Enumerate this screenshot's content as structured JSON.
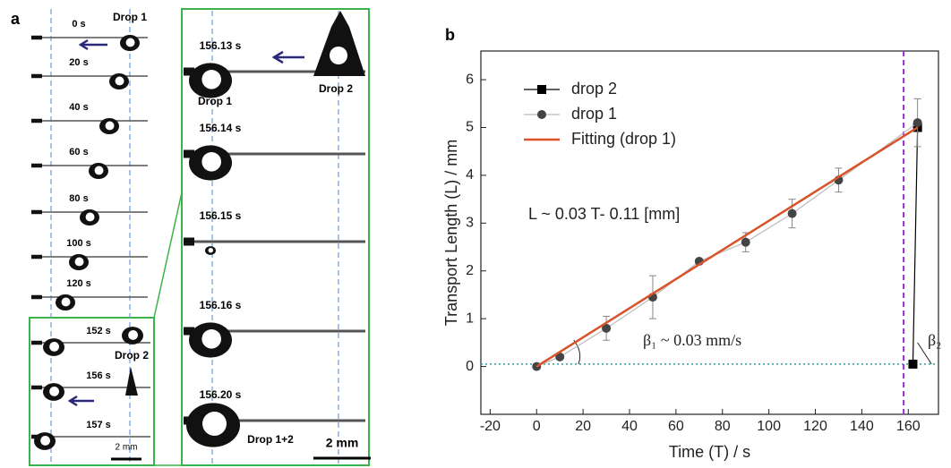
{
  "panel_a": {
    "label": "a",
    "drop1_label": "Drop 1",
    "frames": [
      "0 s",
      "20 s",
      "40 s",
      "60 s",
      "80 s",
      "100 s",
      "120 s"
    ],
    "inset": {
      "frames": [
        "152 s",
        "156 s",
        "157 s"
      ],
      "drop2_label": "Drop 2",
      "scale_bar": "2 mm"
    },
    "zoom": {
      "frames": [
        "156.13 s",
        "156.14 s",
        "156.15 s",
        "156.16 s",
        "156.20 s"
      ],
      "drop2_label": "Drop 2",
      "drop1_label": "Drop 1",
      "merged_label": "Drop 1+2",
      "scale_bar": "2 mm"
    }
  },
  "chart_data": {
    "type": "line",
    "label": "b",
    "x_label": "Time (T) / s",
    "y_label": "Transport Length (L) / mm",
    "xlim": [
      -24,
      173
    ],
    "ylim": [
      -1,
      6.6
    ],
    "xticks": [
      -20,
      0,
      20,
      40,
      60,
      80,
      100,
      120,
      140,
      160
    ],
    "yticks": [
      0,
      1,
      2,
      3,
      4,
      5,
      6
    ],
    "series": [
      {
        "name": "drop 2",
        "color": "#000000",
        "marker": "square",
        "x": [
          164,
          162
        ],
        "values": [
          5.0,
          0.05
        ]
      },
      {
        "name": "drop 1",
        "color": "#444444",
        "line_color": "#bbbbbb",
        "marker": "circle",
        "x": [
          0,
          10,
          30,
          50,
          70,
          90,
          110,
          130,
          164
        ],
        "values": [
          0,
          0.2,
          0.8,
          1.45,
          2.2,
          2.6,
          3.2,
          3.9,
          5.1
        ],
        "errors": [
          0,
          0,
          0.25,
          0.45,
          0.05,
          0.2,
          0.3,
          0.25,
          0.5
        ]
      },
      {
        "name": "Fitting (drop 1)",
        "color": "#d9532b",
        "marker": "none",
        "x": [
          0,
          164
        ],
        "values": [
          0,
          5.0
        ]
      }
    ],
    "vline": {
      "value": 158,
      "color": "#9b30d9"
    },
    "hline": {
      "value": 0.05,
      "color": "#2a9d9d"
    },
    "annotations": [
      "L ~ 0.03 T- 0.11 [mm]",
      "β₁ ~ 0.03 mm/s",
      "β₂"
    ]
  }
}
